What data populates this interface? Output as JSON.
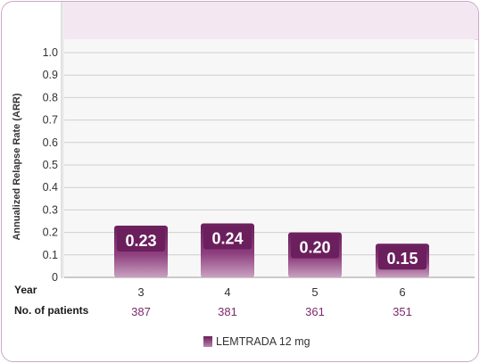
{
  "chart_data": {
    "type": "bar",
    "title": "",
    "ylabel": "Annualized Relapse Rate (ARR)",
    "xlabel": "Year",
    "ylim": [
      0,
      1.0
    ],
    "yticks": [
      "0",
      "0.1",
      "0.2",
      "0.3",
      "0.4",
      "0.5",
      "0.6",
      "0.7",
      "0.8",
      "0.9",
      "1.0"
    ],
    "grid": true,
    "categories": [
      "3",
      "4",
      "5",
      "6"
    ],
    "series": [
      {
        "name": "LEMTRADA 12 mg",
        "values": [
          0.23,
          0.24,
          0.2,
          0.15
        ],
        "labels": [
          "0.23",
          "0.24",
          "0.20",
          "0.15"
        ],
        "color": "#7b2a6b"
      }
    ],
    "legend_position": "bottom-center",
    "patients_label": "No. of patients",
    "patients": [
      "387",
      "381",
      "361",
      "351"
    ]
  },
  "colors": {
    "bar_top": "#6b1f5c",
    "bar_bottom": "#c9a1c0",
    "accent_text": "#7b2a6b",
    "border": "#c9a9c6",
    "top_band": "#f3e8f1"
  }
}
